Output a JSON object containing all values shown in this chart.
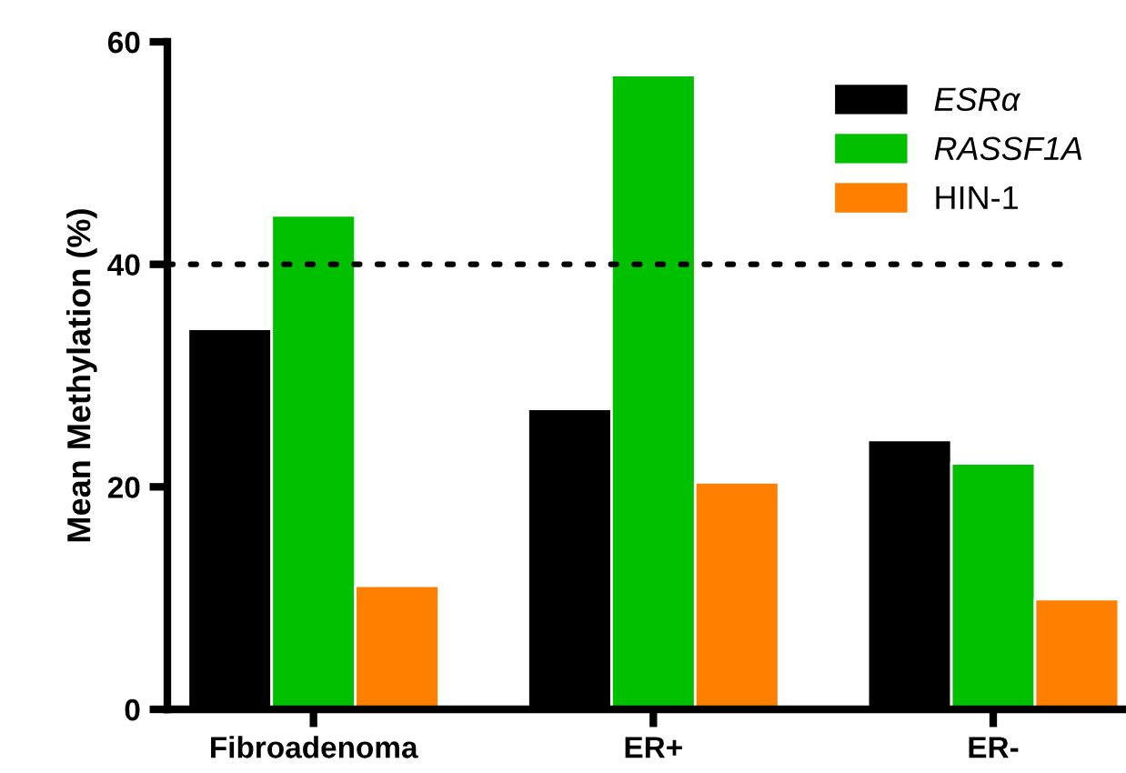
{
  "chart_data": {
    "type": "bar",
    "ylabel": "Mean Methylation (%)",
    "categories": [
      "Fibroadenoma",
      "ER+",
      "ER-"
    ],
    "series": [
      {
        "name": "ESRα",
        "color": "#000000",
        "values": [
          34.2,
          27.0,
          24.2
        ]
      },
      {
        "name": "RASSF1A",
        "color": "#00c000",
        "values": [
          44.4,
          57.0,
          22.1
        ]
      },
      {
        "name": "HIN-1",
        "color": "#ff8000",
        "values": [
          11.1,
          20.4,
          9.9
        ]
      }
    ],
    "ylim": [
      0,
      60
    ],
    "yticks": [
      0,
      20,
      40,
      60
    ],
    "ref_lines": [
      {
        "axis": "y",
        "value": 40,
        "color": "#000000",
        "line_style": "dotted"
      }
    ],
    "grid": false,
    "legend": "top right"
  }
}
